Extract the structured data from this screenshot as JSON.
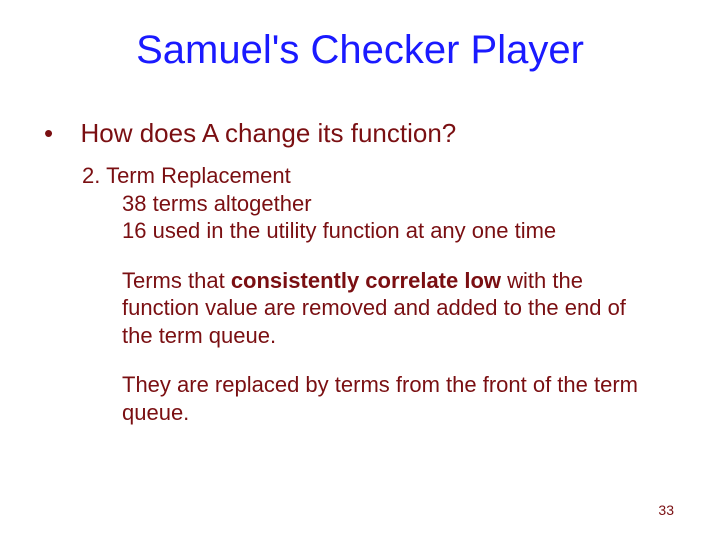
{
  "slide": {
    "title": "Samuel's Checker Player",
    "title_color": "#1a1aff",
    "title_fontsize": 40,
    "body_color": "#7a0f12",
    "body_fontsize": 22,
    "bullet_fontsize": 26,
    "background_color": "#ffffff",
    "bullet_symbol": "•",
    "bullet_text": "How does A change its function?",
    "line_section_number": "2. Term Replacement",
    "line_detail_1": "38 terms altogether",
    "line_detail_2": "16 used in the utility function at any one time",
    "para1_pre": "Terms that ",
    "para1_bold": "consistently correlate low",
    "para1_post": " with the function value are removed and added to the end of the term queue.",
    "para2": "They are replaced by terms from the front of the term queue.",
    "page_number": "33",
    "page_number_fontsize": 14
  }
}
